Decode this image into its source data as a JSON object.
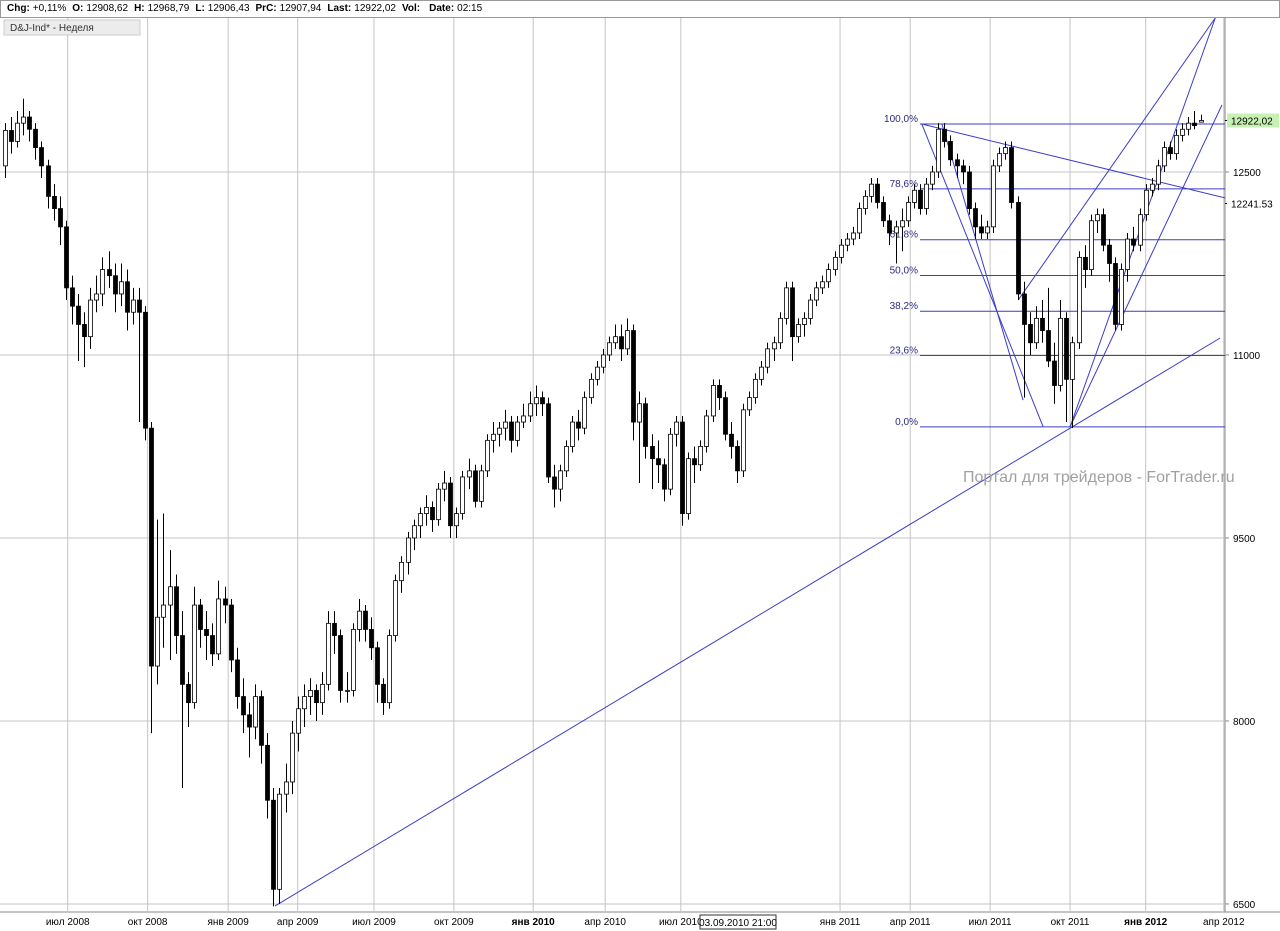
{
  "chart_data": {
    "type": "candlestick",
    "header": [
      {
        "label": "Chg:",
        "value": "+0,11%"
      },
      {
        "label": "O:",
        "value": "12908,62"
      },
      {
        "label": "H:",
        "value": "12968,79"
      },
      {
        "label": "L:",
        "value": "12906,43"
      },
      {
        "label": "PrC:",
        "value": "12907,94"
      },
      {
        "label": "Last:",
        "value": "12922,02"
      },
      {
        "label": "Vol:",
        "value": ""
      },
      {
        "label": "Date:",
        "value": "02:15"
      }
    ],
    "instrument": "D&J-Ind* - Неделя",
    "watermark": "Портал для трейдеров - ForTrader.ru",
    "tooltip": "03.09.2010 21:00",
    "up_color": "#ffffff",
    "down_color": "#000000",
    "line_color": "#3c3cc8",
    "xlim": [
      -0.8,
      200
    ],
    "ylim": [
      6434,
      13762
    ],
    "yticks": [
      12500,
      11000,
      9500,
      8000,
      6500
    ],
    "price_markers": [
      {
        "value": 12922.02,
        "label": "12922,02",
        "color": "#c6f0b4"
      },
      {
        "value": 12241.53,
        "label": "12241.53",
        "color": "#ffffff"
      }
    ],
    "xticks": [
      {
        "value": 10.3,
        "label": "июл 2008"
      },
      {
        "value": 23.4,
        "label": "окт 2008"
      },
      {
        "value": 36.6,
        "label": "янв 2009"
      },
      {
        "value": 48,
        "label": "апр 2009"
      },
      {
        "value": 60.5,
        "label": "июл 2009"
      },
      {
        "value": 73.6,
        "label": "окт 2009"
      },
      {
        "value": 86.6,
        "label": "янв 2010",
        "bold": true
      },
      {
        "value": 98.4,
        "label": "апр 2010"
      },
      {
        "value": 110.8,
        "label": "июл 2010"
      },
      {
        "value": 136.9,
        "label": "янв 2011"
      },
      {
        "value": 148.4,
        "label": "апр 2011"
      },
      {
        "value": 161.5,
        "label": "июл 2011"
      },
      {
        "value": 174.6,
        "label": "окт 2011"
      },
      {
        "value": 187,
        "label": "янв 2012",
        "bold": true
      },
      {
        "value": 199.8,
        "label": "апр 2012"
      }
    ],
    "fibonacci": {
      "high": 12893,
      "low": 10410,
      "x_start": 150,
      "levels": [
        {
          "value": 100,
          "label": "100,0%"
        },
        {
          "value": 78.6,
          "label": "78,6%"
        },
        {
          "value": 61.8,
          "label": "61,8%"
        },
        {
          "value": 50,
          "label": "50,0%"
        },
        {
          "value": 38.2,
          "label": "38,2%"
        },
        {
          "value": 23.6,
          "label": "23,6%"
        },
        {
          "value": 0,
          "label": "0,0%"
        }
      ]
    },
    "trend_lines": [
      {
        "x": [
          44.3,
          199.2
        ],
        "y": [
          6484,
          11139
        ]
      },
      {
        "x": [
          150.3,
          200
        ],
        "y": [
          12893,
          12287
        ]
      },
      {
        "x": [
          150.3,
          170.2
        ],
        "y": [
          12893,
          10410
        ]
      },
      {
        "x": [
          153.6,
          166.9
        ],
        "y": [
          12893,
          10630
        ]
      },
      {
        "x": [
          174.6,
          198.4
        ],
        "y": [
          10410,
          13762
        ]
      },
      {
        "x": [
          174.6,
          199.5
        ],
        "y": [
          10410,
          13049
        ]
      },
      {
        "x": [
          166.1,
          198.4
        ],
        "y": [
          11450,
          13762
        ]
      }
    ],
    "ohlc": [
      [
        12550,
        12900,
        12450,
        12840
      ],
      [
        12840,
        12950,
        12650,
        12750
      ],
      [
        12750,
        13000,
        12700,
        12900
      ],
      [
        12900,
        13100,
        12800,
        12950
      ],
      [
        12950,
        13000,
        12750,
        12850
      ],
      [
        12850,
        12900,
        12600,
        12700
      ],
      [
        12700,
        12750,
        12450,
        12550
      ],
      [
        12550,
        12600,
        12200,
        12300
      ],
      [
        12300,
        12400,
        12100,
        12200
      ],
      [
        12200,
        12300,
        11900,
        12050
      ],
      [
        12050,
        12100,
        11450,
        11550
      ],
      [
        11550,
        11650,
        11250,
        11400
      ],
      [
        11400,
        11500,
        10950,
        11250
      ],
      [
        11250,
        11350,
        10900,
        11150
      ],
      [
        11150,
        11550,
        11050,
        11450
      ],
      [
        11450,
        11650,
        11350,
        11500
      ],
      [
        11500,
        11800,
        11400,
        11700
      ],
      [
        11700,
        11850,
        11550,
        11650
      ],
      [
        11650,
        11750,
        11350,
        11500
      ],
      [
        11500,
        11750,
        11400,
        11600
      ],
      [
        11600,
        11700,
        11200,
        11350
      ],
      [
        11350,
        11550,
        11250,
        11450
      ],
      [
        11450,
        11550,
        10450,
        11350
      ],
      [
        11350,
        11400,
        10300,
        10400
      ],
      [
        10400,
        10450,
        7900,
        8450
      ],
      [
        8450,
        9650,
        8300,
        8850
      ],
      [
        8850,
        9700,
        8600,
        8950
      ],
      [
        8950,
        9400,
        8500,
        9100
      ],
      [
        9100,
        9200,
        8550,
        8700
      ],
      [
        8700,
        8900,
        7450,
        8300
      ],
      [
        8300,
        8400,
        7950,
        8150
      ],
      [
        8150,
        9100,
        8100,
        8950
      ],
      [
        8950,
        9000,
        8600,
        8750
      ],
      [
        8750,
        8900,
        8500,
        8700
      ],
      [
        8700,
        8800,
        8450,
        8550
      ],
      [
        8550,
        9150,
        8500,
        9000
      ],
      [
        9000,
        9100,
        8800,
        8950
      ],
      [
        8950,
        9000,
        8400,
        8500
      ],
      [
        8500,
        8600,
        8100,
        8200
      ],
      [
        8200,
        8350,
        7900,
        8050
      ],
      [
        8050,
        8150,
        7700,
        7950
      ],
      [
        7950,
        8300,
        7850,
        8200
      ],
      [
        8200,
        8250,
        7650,
        7800
      ],
      [
        7800,
        7900,
        7200,
        7350
      ],
      [
        7350,
        7450,
        6480,
        6620
      ],
      [
        6620,
        7450,
        6500,
        7400
      ],
      [
        7400,
        7650,
        7250,
        7500
      ],
      [
        7500,
        8000,
        7400,
        7900
      ],
      [
        7900,
        8200,
        7750,
        8100
      ],
      [
        8100,
        8300,
        7950,
        8200
      ],
      [
        8200,
        8350,
        8050,
        8250
      ],
      [
        8250,
        8300,
        8000,
        8150
      ],
      [
        8150,
        8400,
        8050,
        8300
      ],
      [
        8300,
        8900,
        8250,
        8800
      ],
      [
        8800,
        8900,
        8550,
        8700
      ],
      [
        8700,
        8750,
        8150,
        8250
      ],
      [
        8250,
        8400,
        8150,
        8250
      ],
      [
        8250,
        8800,
        8200,
        8750
      ],
      [
        8750,
        9000,
        8650,
        8900
      ],
      [
        8900,
        8950,
        8650,
        8750
      ],
      [
        8750,
        8850,
        8500,
        8600
      ],
      [
        8600,
        8650,
        8150,
        8300
      ],
      [
        8300,
        8350,
        8050,
        8150
      ],
      [
        8150,
        8750,
        8100,
        8700
      ],
      [
        8700,
        9200,
        8650,
        9150
      ],
      [
        9150,
        9350,
        9050,
        9300
      ],
      [
        9300,
        9550,
        9200,
        9500
      ],
      [
        9500,
        9650,
        9400,
        9600
      ],
      [
        9600,
        9750,
        9500,
        9700
      ],
      [
        9700,
        9850,
        9600,
        9750
      ],
      [
        9750,
        9800,
        9550,
        9650
      ],
      [
        9650,
        9950,
        9600,
        9900
      ],
      [
        9900,
        10050,
        9800,
        9950
      ],
      [
        9950,
        10000,
        9500,
        9600
      ],
      [
        9600,
        9750,
        9500,
        9700
      ],
      [
        9700,
        10050,
        9650,
        10000
      ],
      [
        10000,
        10150,
        9900,
        10050
      ],
      [
        10050,
        10100,
        9750,
        9800
      ],
      [
        9800,
        10100,
        9750,
        10050
      ],
      [
        10050,
        10350,
        10000,
        10300
      ],
      [
        10300,
        10450,
        10200,
        10350
      ],
      [
        10350,
        10450,
        10250,
        10400
      ],
      [
        10400,
        10550,
        10300,
        10450
      ],
      [
        10450,
        10500,
        10200,
        10300
      ],
      [
        10300,
        10500,
        10250,
        10450
      ],
      [
        10450,
        10600,
        10400,
        10500
      ],
      [
        10500,
        10700,
        10450,
        10600
      ],
      [
        10600,
        10750,
        10500,
        10650
      ],
      [
        10650,
        10700,
        10500,
        10600
      ],
      [
        10600,
        10650,
        9950,
        10000
      ],
      [
        10000,
        10100,
        9750,
        9900
      ],
      [
        9900,
        10100,
        9800,
        10050
      ],
      [
        10050,
        10300,
        10000,
        10250
      ],
      [
        10250,
        10500,
        10200,
        10450
      ],
      [
        10450,
        10550,
        10300,
        10400
      ],
      [
        10400,
        10700,
        10350,
        10650
      ],
      [
        10650,
        10850,
        10600,
        10800
      ],
      [
        10800,
        10950,
        10750,
        10900
      ],
      [
        10900,
        11050,
        10850,
        11000
      ],
      [
        11000,
        11150,
        10950,
        11100
      ],
      [
        11100,
        11250,
        11050,
        11150
      ],
      [
        11150,
        11250,
        10950,
        11050
      ],
      [
        11050,
        11300,
        11000,
        11200
      ],
      [
        11200,
        11250,
        10300,
        10450
      ],
      [
        10450,
        10700,
        9950,
        10600
      ],
      [
        10600,
        10650,
        10150,
        10250
      ],
      [
        10250,
        10350,
        9900,
        10150
      ],
      [
        10150,
        10300,
        9950,
        10100
      ],
      [
        10100,
        10150,
        9800,
        9900
      ],
      [
        9900,
        10400,
        9850,
        10350
      ],
      [
        10350,
        10500,
        10250,
        10450
      ],
      [
        10450,
        10500,
        9600,
        9700
      ],
      [
        9700,
        10200,
        9650,
        10150
      ],
      [
        10150,
        10250,
        9950,
        10100
      ],
      [
        10100,
        10300,
        10050,
        10250
      ],
      [
        10250,
        10550,
        10200,
        10500
      ],
      [
        10500,
        10800,
        10450,
        10750
      ],
      [
        10750,
        10800,
        10550,
        10650
      ],
      [
        10650,
        10700,
        10300,
        10350
      ],
      [
        10350,
        10450,
        10150,
        10250
      ],
      [
        10250,
        10300,
        9950,
        10050
      ],
      [
        10050,
        10600,
        10000,
        10550
      ],
      [
        10550,
        10700,
        10500,
        10650
      ],
      [
        10650,
        10850,
        10600,
        10800
      ],
      [
        10800,
        10950,
        10750,
        10900
      ],
      [
        10900,
        11100,
        10850,
        11050
      ],
      [
        11050,
        11150,
        10950,
        11100
      ],
      [
        11100,
        11350,
        11050,
        11300
      ],
      [
        11300,
        11600,
        11250,
        11550
      ],
      [
        11550,
        11600,
        10950,
        11150
      ],
      [
        11150,
        11300,
        11100,
        11250
      ],
      [
        11250,
        11350,
        11150,
        11300
      ],
      [
        11300,
        11500,
        11250,
        11450
      ],
      [
        11450,
        11600,
        11400,
        11550
      ],
      [
        11550,
        11650,
        11500,
        11600
      ],
      [
        11600,
        11750,
        11550,
        11700
      ],
      [
        11700,
        11850,
        11650,
        11800
      ],
      [
        11800,
        11950,
        11750,
        11900
      ],
      [
        11900,
        12000,
        11850,
        11950
      ],
      [
        11950,
        12050,
        11900,
        12000
      ],
      [
        12000,
        12250,
        11950,
        12200
      ],
      [
        12200,
        12350,
        12150,
        12300
      ],
      [
        12300,
        12450,
        12250,
        12400
      ],
      [
        12400,
        12450,
        12200,
        12250
      ],
      [
        12250,
        12300,
        12050,
        12100
      ],
      [
        12100,
        12150,
        11900,
        12000
      ],
      [
        12000,
        12100,
        11750,
        12050
      ],
      [
        12050,
        12200,
        11850,
        12100
      ],
      [
        12100,
        12300,
        12050,
        12250
      ],
      [
        12250,
        12400,
        12200,
        12350
      ],
      [
        12350,
        12400,
        12150,
        12200
      ],
      [
        12200,
        12450,
        12150,
        12400
      ],
      [
        12400,
        12550,
        12350,
        12500
      ],
      [
        12500,
        12900,
        12450,
        12850
      ],
      [
        12850,
        12900,
        12700,
        12750
      ],
      [
        12750,
        12800,
        12550,
        12600
      ],
      [
        12600,
        12650,
        12450,
        12550
      ],
      [
        12550,
        12600,
        12400,
        12500
      ],
      [
        12500,
        12550,
        12150,
        12200
      ],
      [
        12200,
        12250,
        11950,
        12050
      ],
      [
        12050,
        12150,
        11950,
        12000
      ],
      [
        12000,
        12100,
        11950,
        12050
      ],
      [
        12050,
        12600,
        12000,
        12550
      ],
      [
        12550,
        12700,
        12500,
        12650
      ],
      [
        12650,
        12750,
        12600,
        12700
      ],
      [
        12700,
        12750,
        12200,
        12250
      ],
      [
        12250,
        12300,
        11450,
        11500
      ],
      [
        11500,
        11600,
        10650,
        11250
      ],
      [
        11250,
        11350,
        11000,
        11100
      ],
      [
        11100,
        11400,
        11050,
        11300
      ],
      [
        11300,
        11450,
        11100,
        11200
      ],
      [
        11200,
        11550,
        10900,
        10950
      ],
      [
        10950,
        11100,
        10600,
        10750
      ],
      [
        10750,
        11450,
        10700,
        11300
      ],
      [
        11300,
        11350,
        10450,
        10800
      ],
      [
        10800,
        11150,
        10400,
        11100
      ],
      [
        11100,
        11850,
        11050,
        11800
      ],
      [
        11800,
        11900,
        11550,
        11700
      ],
      [
        11700,
        12150,
        11650,
        12100
      ],
      [
        12100,
        12200,
        12000,
        12150
      ],
      [
        12150,
        12200,
        11850,
        11900
      ],
      [
        11900,
        11950,
        11600,
        11750
      ],
      [
        11750,
        11800,
        11200,
        11250
      ],
      [
        11250,
        11750,
        11200,
        11700
      ],
      [
        11700,
        12000,
        11600,
        11950
      ],
      [
        11950,
        12050,
        11850,
        11900
      ],
      [
        11900,
        12200,
        11850,
        12150
      ],
      [
        12150,
        12400,
        12100,
        12350
      ],
      [
        12350,
        12450,
        12300,
        12400
      ],
      [
        12400,
        12600,
        12350,
        12550
      ],
      [
        12550,
        12750,
        12500,
        12700
      ],
      [
        12700,
        12750,
        12600,
        12650
      ],
      [
        12650,
        12850,
        12600,
        12800
      ],
      [
        12800,
        12900,
        12750,
        12850
      ],
      [
        12850,
        12950,
        12800,
        12900
      ],
      [
        12900,
        13000,
        12850,
        12880
      ],
      [
        12908.62,
        12968.79,
        12906.43,
        12922.02
      ]
    ]
  }
}
